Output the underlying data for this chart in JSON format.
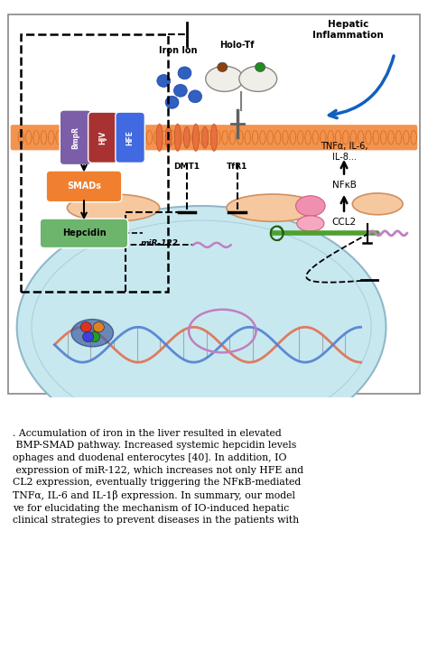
{
  "figure_width": 4.74,
  "figure_height": 7.22,
  "dpi": 100,
  "bg_color": "#ffffff",
  "cell_bg": "#C8E8F0",
  "membrane_color": "#F08030",
  "smads_color": "#F08030",
  "hepcidin_color": "#6DB56D",
  "bmpr_color": "#7B5EA7",
  "hjv_color": "#A83232",
  "hfe_color": "#4169E1",
  "text_block": ". Accumulation of iron in the liver resulted in elevated\n BMP-SMAD pathway. Increased systemic hepcidin levels\nophages and duodenal enterocytes [40]. In addition, IO\n expression of miR-122, which increases not only HFE and\nCL2 expression, eventually triggering the NFκB-mediated\nTNFα, IL-6 and IL-1β expression. In summary, our model\nve for elucidating the mechanism of IO-induced hepatic\nclinical strategies to prevent diseases in the patients with",
  "text_fontsize": 7.8,
  "iron_ion_label": "Iron Ion",
  "holo_tf_label": "Holo-Tf",
  "hepatic_inflammation_label": "Hepatic\nInflammation",
  "tnf_label": "TNFα, IL-6,\nIL-8...",
  "nfkb_label": "NFκB",
  "ccl2_label": "CCL2",
  "mir122_label": "miR-122",
  "smads_label": "SMADs",
  "hepcidin_label": "Hepcidin",
  "dmt1_label": "DMT1",
  "tfr1_label": "TfR1"
}
